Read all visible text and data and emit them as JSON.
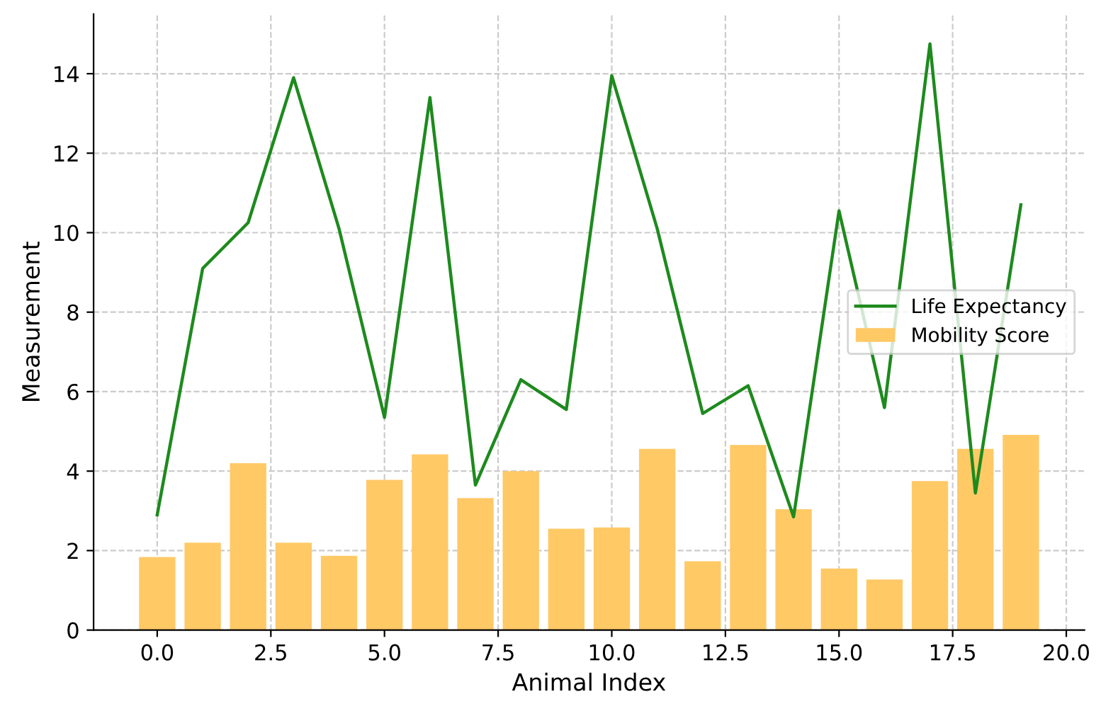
{
  "chart_data": {
    "type": "bar",
    "xlabel": "Animal Index",
    "ylabel": "Measurement",
    "x": [
      0,
      1,
      2,
      3,
      4,
      5,
      6,
      7,
      8,
      9,
      10,
      11,
      12,
      13,
      14,
      15,
      16,
      17,
      18,
      19
    ],
    "series": [
      {
        "name": "Life Expectancy",
        "type": "line",
        "color": "#1e8a1e",
        "values": [
          2.9,
          9.1,
          10.25,
          13.9,
          10.1,
          5.35,
          13.4,
          3.65,
          6.3,
          5.55,
          13.95,
          10.1,
          5.45,
          6.15,
          2.85,
          10.55,
          5.6,
          14.75,
          3.45,
          10.7
        ]
      },
      {
        "name": "Mobility Score",
        "color": "#ffc966",
        "values": [
          1.84,
          2.2,
          4.2,
          2.2,
          1.87,
          3.78,
          4.42,
          3.32,
          4.0,
          2.55,
          2.58,
          4.56,
          1.73,
          4.66,
          3.04,
          1.55,
          1.27,
          3.75,
          4.56,
          4.91
        ]
      }
    ],
    "xlim": [
      -1.4,
      20.4
    ],
    "xticks": [
      {
        "value": 0,
        "label": "0.0"
      },
      {
        "value": 2.5,
        "label": "2.5"
      },
      {
        "value": 5,
        "label": "5.0"
      },
      {
        "value": 7.5,
        "label": "7.5"
      },
      {
        "value": 10,
        "label": "10.0"
      },
      {
        "value": 12.5,
        "label": "12.5"
      },
      {
        "value": 15,
        "label": "15.0"
      },
      {
        "value": 17.5,
        "label": "17.5"
      },
      {
        "value": 20,
        "label": "20.0"
      }
    ],
    "ylim": [
      0,
      15.5
    ],
    "yticks": [
      0,
      2,
      4,
      6,
      8,
      10,
      12,
      14
    ],
    "grid": true,
    "legend": "right",
    "line_style": "solid"
  }
}
